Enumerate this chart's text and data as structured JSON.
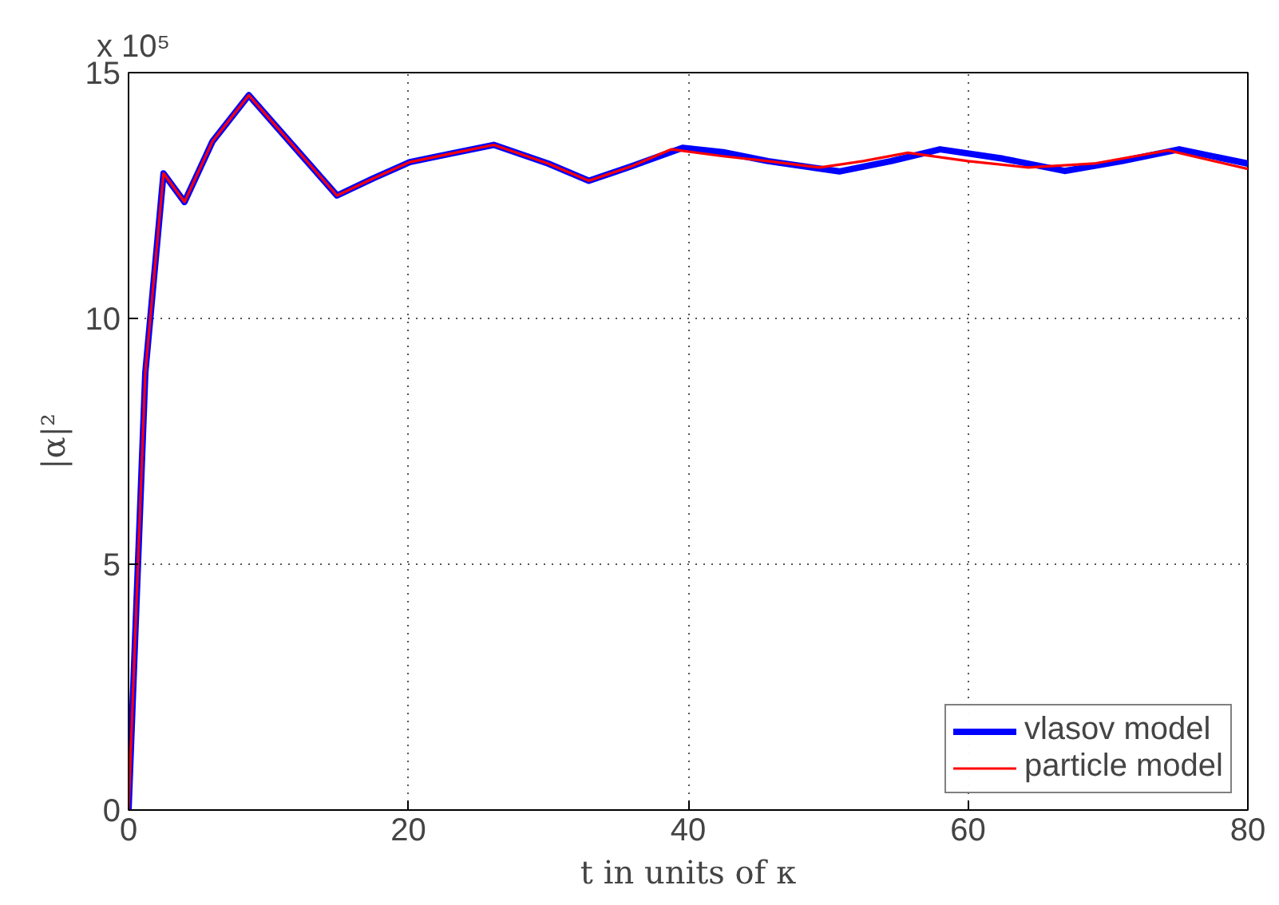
{
  "chart_data": {
    "type": "line",
    "xlabel": "t in units of κ",
    "ylabel": "|α|²",
    "annotations": [
      "x 10⁵"
    ],
    "xlim": [
      0,
      80
    ],
    "ylim": [
      0,
      15
    ],
    "xticks": [
      0,
      20,
      40,
      60,
      80
    ],
    "yticks": [
      0,
      5,
      10,
      15
    ],
    "grid": true,
    "legend": "bottom right",
    "line_style": "solid",
    "series": [
      {
        "name": "vlasov model",
        "color": "#0000ff",
        "x": [
          0,
          1.2,
          2.5,
          4.0,
          6.0,
          8.6,
          11.5,
          14.9,
          17.5,
          20.1,
          23,
          26.1,
          30,
          32.9,
          36,
          39.6,
          42.5,
          45.7,
          50.8,
          54.5,
          58.0,
          62.5,
          66.9,
          71,
          75.1,
          80
        ],
        "values": [
          0,
          8.9,
          12.95,
          12.37,
          13.6,
          14.54,
          13.6,
          12.5,
          12.85,
          13.18,
          13.35,
          13.53,
          13.15,
          12.8,
          13.1,
          13.47,
          13.38,
          13.2,
          12.99,
          13.2,
          13.44,
          13.25,
          13.0,
          13.2,
          13.44,
          13.15
        ]
      },
      {
        "name": "particle model",
        "color": "#ff0000",
        "x": [
          0,
          1.2,
          2.5,
          4.0,
          6.0,
          8.6,
          11.5,
          14.9,
          17.5,
          20.1,
          23,
          26.1,
          30,
          32.9,
          36,
          38.8,
          42.5,
          45.7,
          49.4,
          52.5,
          55.7,
          60,
          64.3,
          69,
          74.3,
          80
        ],
        "values": [
          0,
          8.9,
          12.95,
          12.37,
          13.6,
          14.54,
          13.6,
          12.5,
          12.85,
          13.18,
          13.35,
          13.53,
          13.15,
          12.8,
          13.1,
          13.44,
          13.3,
          13.2,
          13.07,
          13.2,
          13.37,
          13.2,
          13.07,
          13.15,
          13.42,
          13.04
        ]
      }
    ]
  }
}
